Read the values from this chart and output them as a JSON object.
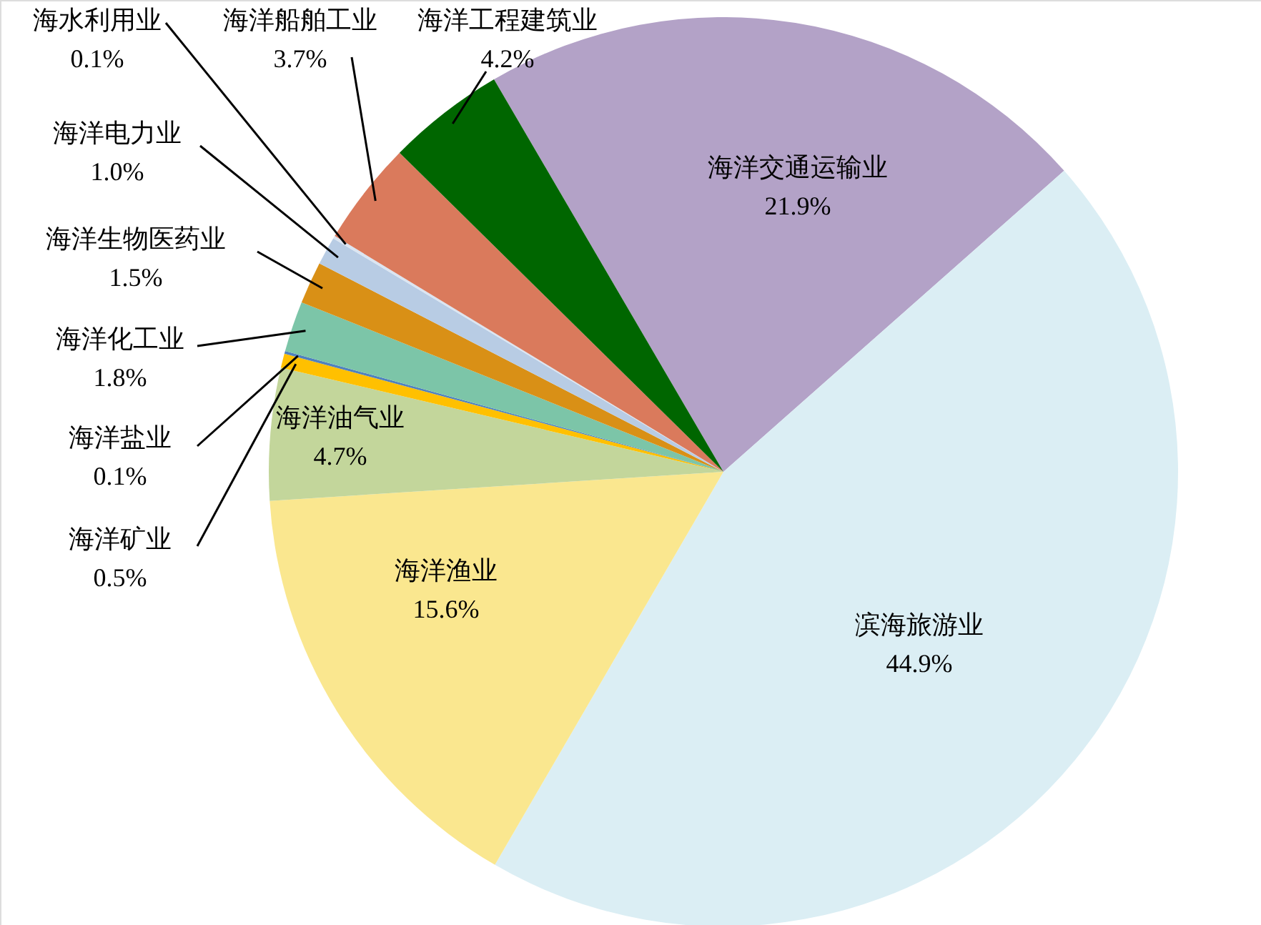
{
  "chart_data": {
    "type": "pie",
    "categories": [
      "海洋交通运输业",
      "滨海旅游业",
      "海洋渔业",
      "海洋油气业",
      "海洋矿业",
      "海洋盐业",
      "海洋化工业",
      "海洋生物医药业",
      "海洋电力业",
      "海水利用业",
      "海洋船舶工业",
      "海洋工程建筑业"
    ],
    "values": [
      21.9,
      44.9,
      15.6,
      4.7,
      0.5,
      0.1,
      1.8,
      1.5,
      1.0,
      0.1,
      3.7,
      4.2
    ],
    "value_labels": [
      "21.9%",
      "44.9%",
      "15.6%",
      "4.7%",
      "0.5%",
      "0.1%",
      "1.8%",
      "1.5%",
      "1.0%",
      "0.1%",
      "3.7%",
      "4.2%"
    ],
    "colors": [
      "#b3a2c7",
      "#dbeef4",
      "#fae78f",
      "#c3d69b",
      "#ffc000",
      "#4f81bd",
      "#7cc5a8",
      "#d99016",
      "#b8cce4",
      "#dbe5f1",
      "#da7a5c",
      "#006600"
    ]
  }
}
